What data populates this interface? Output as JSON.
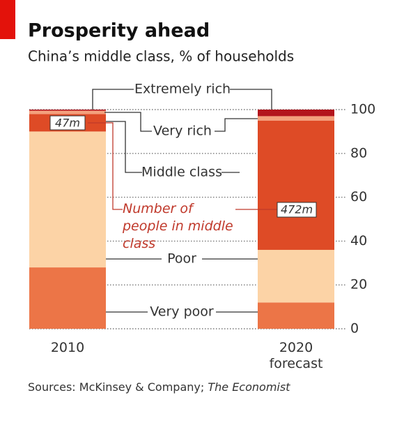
{
  "chart_data": {
    "type": "stacked-bar",
    "title": "Prosperity ahead",
    "subtitle": "China’s middle class, % of households",
    "categories": [
      "2010",
      "2020 forecast"
    ],
    "series": [
      {
        "name": "Very poor",
        "color": "#ec7547",
        "values": [
          28,
          12
        ]
      },
      {
        "name": "Poor",
        "color": "#fcd3a6",
        "values": [
          62,
          24
        ]
      },
      {
        "name": "Middle class",
        "color": "#de4b26",
        "values": [
          8,
          59
        ]
      },
      {
        "name": "Very rich",
        "color": "#f4a07c",
        "values": [
          1.5,
          2
        ]
      },
      {
        "name": "Extremely rich",
        "color": "#b3141c",
        "values": [
          0.5,
          3
        ]
      }
    ],
    "middle_class_people": {
      "label": "Number of people in middle class",
      "values": [
        47,
        472
      ],
      "value_labels": [
        "47m",
        "472m"
      ]
    },
    "ylim": [
      0,
      100
    ],
    "yticks": [
      0,
      20,
      40,
      60,
      80,
      100
    ],
    "grid": true,
    "source": "Sources: McKinsey & Company;",
    "source_italic": "The Economist"
  }
}
